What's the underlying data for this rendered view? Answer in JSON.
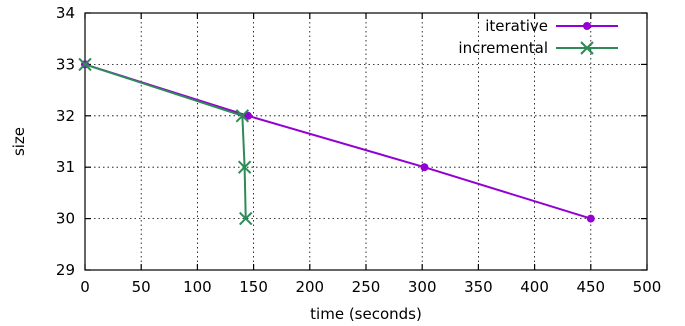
{
  "chart_data": {
    "type": "line",
    "xlabel": "time (seconds)",
    "ylabel": "size",
    "xlim": [
      0,
      500
    ],
    "ylim": [
      29,
      34
    ],
    "x_ticks": [
      0,
      50,
      100,
      150,
      200,
      250,
      300,
      350,
      400,
      450,
      500
    ],
    "y_ticks": [
      29,
      30,
      31,
      32,
      33,
      34
    ],
    "grid": true,
    "legend_position": "top-right",
    "series": [
      {
        "name": "iterative",
        "color": "#9400d3",
        "marker": "circle",
        "x": [
          0,
          145,
          302,
          450
        ],
        "y": [
          33,
          32,
          31,
          30
        ]
      },
      {
        "name": "incremental",
        "color": "#2e8b57",
        "marker": "x",
        "x": [
          0,
          140,
          142,
          143
        ],
        "y": [
          33,
          32,
          31,
          30
        ]
      }
    ]
  }
}
